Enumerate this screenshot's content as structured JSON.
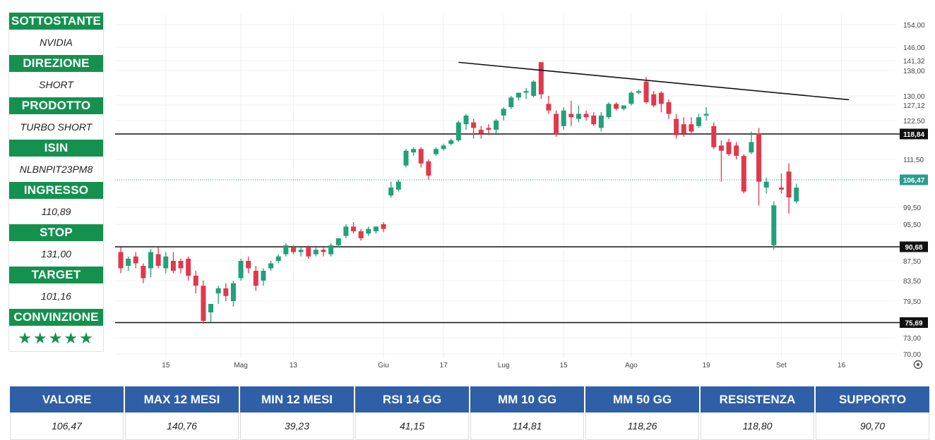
{
  "panel": {
    "items": [
      {
        "label": "SOTTOSTANTE",
        "value": "NVIDIA"
      },
      {
        "label": "DIREZIONE",
        "value": "SHORT"
      },
      {
        "label": "PRODOTTO",
        "value": "TURBO SHORT"
      },
      {
        "label": "ISIN",
        "value": "NLBNPIT23PM8"
      },
      {
        "label": "INGRESSO",
        "value": "110,89"
      },
      {
        "label": "STOP",
        "value": "131,00"
      },
      {
        "label": "TARGET",
        "value": "101,16"
      },
      {
        "label": "CONVINZIONE",
        "value": "★★★★★"
      }
    ],
    "rating_stars": 5
  },
  "chart_data": {
    "type": "candlestick",
    "colors": {
      "up": "#22a07a",
      "down": "#e0384d",
      "line": "#111111",
      "grid": "#f0f0f0",
      "current": "#2a9d8f"
    },
    "grid": true,
    "y_ticks": [
      {
        "value": 154.0,
        "label": "154,00"
      },
      {
        "value": 146.0,
        "label": "146,00"
      },
      {
        "value": 141.32,
        "label": "141,32"
      },
      {
        "value": 138.0,
        "label": "138,00"
      },
      {
        "value": 130.0,
        "label": "130,00"
      },
      {
        "value": 127.12,
        "label": "127,12"
      },
      {
        "value": 122.5,
        "label": "122,50"
      },
      {
        "value": 111.5,
        "label": "111,50"
      },
      {
        "value": 99.5,
        "label": "99,50"
      },
      {
        "value": 95.5,
        "label": "95,50"
      },
      {
        "value": 87.5,
        "label": "87,50"
      },
      {
        "value": 83.5,
        "label": "83,50"
      },
      {
        "value": 79.5,
        "label": "79,50"
      },
      {
        "value": 73.0,
        "label": "73,00"
      },
      {
        "value": 70.0,
        "label": "70,00"
      }
    ],
    "x_ticks": [
      {
        "index": 6,
        "label": "15"
      },
      {
        "index": 16,
        "label": "Mag"
      },
      {
        "index": 23,
        "label": "13"
      },
      {
        "index": 35,
        "label": "Giu"
      },
      {
        "index": 43,
        "label": "17"
      },
      {
        "index": 51,
        "label": "Lug"
      },
      {
        "index": 59,
        "label": "15"
      },
      {
        "index": 68,
        "label": "Ago"
      },
      {
        "index": 78,
        "label": "19"
      },
      {
        "index": 88,
        "label": "Set"
      },
      {
        "index": 96,
        "label": "16"
      }
    ],
    "horizontal_levels": [
      {
        "value": 118.84,
        "label": "118,84"
      },
      {
        "value": 90.68,
        "label": "90,68"
      },
      {
        "value": 75.69,
        "label": "75,69"
      }
    ],
    "current_price": {
      "value": 106.47,
      "label": "106,47"
    },
    "trendline": [
      {
        "index": 45,
        "value": 140.76
      },
      {
        "index": 97,
        "value": 128.8
      }
    ],
    "candles": [
      {
        "o": 89.5,
        "h": 90.6,
        "c": 86.0,
        "l": 85.0
      },
      {
        "o": 86.5,
        "h": 88.5,
        "c": 88.0,
        "l": 85.5
      },
      {
        "o": 88.5,
        "h": 89.5,
        "c": 87.0,
        "l": 86.0
      },
      {
        "o": 86.5,
        "h": 87.0,
        "c": 84.0,
        "l": 83.0
      },
      {
        "o": 86.0,
        "h": 90.2,
        "c": 89.5,
        "l": 84.2
      },
      {
        "o": 89.0,
        "h": 90.5,
        "c": 86.5,
        "l": 86.0
      },
      {
        "o": 86.0,
        "h": 89.5,
        "c": 88.5,
        "l": 85.0
      },
      {
        "o": 87.5,
        "h": 89.5,
        "c": 85.5,
        "l": 85.0
      },
      {
        "o": 87.5,
        "h": 88.0,
        "c": 86.0,
        "l": 85.0
      },
      {
        "o": 88.0,
        "h": 88.5,
        "c": 84.5,
        "l": 83.5
      },
      {
        "o": 84.5,
        "h": 85.5,
        "c": 82.5,
        "l": 81.0
      },
      {
        "o": 82.5,
        "h": 83.5,
        "c": 76.0,
        "l": 75.5
      },
      {
        "o": 77.5,
        "h": 79.0,
        "c": 79.0,
        "l": 75.8
      },
      {
        "o": 81.0,
        "h": 82.5,
        "c": 82.0,
        "l": 79.0
      },
      {
        "o": 82.0,
        "h": 83.0,
        "c": 80.5,
        "l": 79.5
      },
      {
        "o": 79.5,
        "h": 83.5,
        "c": 83.0,
        "l": 78.5
      },
      {
        "o": 84.0,
        "h": 88.0,
        "c": 87.5,
        "l": 83.5
      },
      {
        "o": 87.5,
        "h": 88.5,
        "c": 86.0,
        "l": 85.0
      },
      {
        "o": 85.5,
        "h": 86.5,
        "c": 82.5,
        "l": 81.5
      },
      {
        "o": 83.5,
        "h": 86.0,
        "c": 85.5,
        "l": 82.5
      },
      {
        "o": 86.0,
        "h": 87.5,
        "c": 87.0,
        "l": 85.5
      },
      {
        "o": 87.5,
        "h": 89.0,
        "c": 88.5,
        "l": 87.0
      },
      {
        "o": 89.0,
        "h": 91.5,
        "c": 91.0,
        "l": 88.5
      },
      {
        "o": 90.5,
        "h": 91.0,
        "c": 89.5,
        "l": 89.0
      },
      {
        "o": 89.5,
        "h": 90.5,
        "c": 90.0,
        "l": 88.5
      },
      {
        "o": 90.5,
        "h": 91.0,
        "c": 88.5,
        "l": 88.0
      },
      {
        "o": 89.0,
        "h": 90.5,
        "c": 90.0,
        "l": 88.5
      },
      {
        "o": 90.0,
        "h": 90.5,
        "c": 89.5,
        "l": 88.5
      },
      {
        "o": 89.0,
        "h": 91.5,
        "c": 91.0,
        "l": 88.5
      },
      {
        "o": 91.0,
        "h": 92.0,
        "c": 92.5,
        "l": 90.5
      },
      {
        "o": 93.0,
        "h": 95.5,
        "c": 95.0,
        "l": 92.5
      },
      {
        "o": 95.0,
        "h": 96.0,
        "c": 94.0,
        "l": 93.5
      },
      {
        "o": 94.0,
        "h": 94.5,
        "c": 92.5,
        "l": 92.0
      },
      {
        "o": 93.5,
        "h": 95.0,
        "c": 94.5,
        "l": 93.0
      },
      {
        "o": 94.0,
        "h": 95.0,
        "c": 95.0,
        "l": 93.5
      },
      {
        "o": 95.5,
        "h": 96.0,
        "c": 94.5,
        "l": 93.8
      },
      {
        "o": 102.5,
        "h": 106.0,
        "c": 104.5,
        "l": 102.0
      },
      {
        "o": 104.0,
        "h": 106.5,
        "c": 106.0,
        "l": 103.5
      },
      {
        "o": 110.0,
        "h": 114.5,
        "c": 114.0,
        "l": 109.5
      },
      {
        "o": 113.5,
        "h": 115.0,
        "c": 114.5,
        "l": 112.5
      },
      {
        "o": 114.5,
        "h": 115.0,
        "c": 110.5,
        "l": 109.5
      },
      {
        "o": 111.0,
        "h": 111.5,
        "c": 107.5,
        "l": 106.5
      },
      {
        "o": 113.0,
        "h": 115.0,
        "c": 114.5,
        "l": 112.5
      },
      {
        "o": 114.5,
        "h": 116.0,
        "c": 115.5,
        "l": 114.0
      },
      {
        "o": 116.0,
        "h": 117.5,
        "c": 117.0,
        "l": 115.5
      },
      {
        "o": 117.0,
        "h": 122.5,
        "c": 122.0,
        "l": 116.5
      },
      {
        "o": 121.5,
        "h": 124.5,
        "c": 124.0,
        "l": 120.0
      },
      {
        "o": 122.0,
        "h": 123.0,
        "c": 120.5,
        "l": 117.5
      },
      {
        "o": 120.0,
        "h": 121.0,
        "c": 119.0,
        "l": 117.5
      },
      {
        "o": 120.5,
        "h": 121.5,
        "c": 120.0,
        "l": 118.5
      },
      {
        "o": 120.0,
        "h": 123.0,
        "c": 122.5,
        "l": 119.0
      },
      {
        "o": 124.0,
        "h": 126.5,
        "c": 126.0,
        "l": 122.5
      },
      {
        "o": 126.5,
        "h": 130.0,
        "c": 129.5,
        "l": 126.0
      },
      {
        "o": 129.5,
        "h": 131.0,
        "c": 131.0,
        "l": 128.5
      },
      {
        "o": 131.0,
        "h": 132.5,
        "c": 131.5,
        "l": 129.0
      },
      {
        "o": 130.0,
        "h": 135.0,
        "c": 134.5,
        "l": 129.5
      },
      {
        "o": 140.8,
        "h": 140.8,
        "c": 130.5,
        "l": 129.0
      },
      {
        "o": 127.5,
        "h": 130.0,
        "c": 125.5,
        "l": 124.5
      },
      {
        "o": 124.5,
        "h": 125.5,
        "c": 118.8,
        "l": 118.0
      },
      {
        "o": 121.0,
        "h": 126.5,
        "c": 125.5,
        "l": 120.0
      },
      {
        "o": 124.5,
        "h": 128.5,
        "c": 123.5,
        "l": 121.0
      },
      {
        "o": 123.0,
        "h": 127.0,
        "c": 124.5,
        "l": 122.0
      },
      {
        "o": 124.5,
        "h": 125.5,
        "c": 123.5,
        "l": 122.5
      },
      {
        "o": 124.0,
        "h": 125.0,
        "c": 121.5,
        "l": 121.0
      },
      {
        "o": 120.5,
        "h": 125.0,
        "c": 124.0,
        "l": 119.5
      },
      {
        "o": 123.5,
        "h": 128.0,
        "c": 127.5,
        "l": 123.0
      },
      {
        "o": 127.5,
        "h": 128.0,
        "c": 126.0,
        "l": 125.5
      },
      {
        "o": 126.0,
        "h": 127.0,
        "c": 127.0,
        "l": 125.5
      },
      {
        "o": 127.5,
        "h": 131.5,
        "c": 131.0,
        "l": 127.0
      },
      {
        "o": 131.0,
        "h": 132.0,
        "c": 131.5,
        "l": 130.5
      },
      {
        "o": 134.5,
        "h": 136.0,
        "c": 128.0,
        "l": 127.5
      },
      {
        "o": 130.5,
        "h": 131.5,
        "c": 127.0,
        "l": 126.5
      },
      {
        "o": 131.0,
        "h": 131.5,
        "c": 127.5,
        "l": 125.0
      },
      {
        "o": 128.0,
        "h": 129.0,
        "c": 124.5,
        "l": 123.0
      },
      {
        "o": 123.0,
        "h": 124.5,
        "c": 118.5,
        "l": 117.5
      },
      {
        "o": 121.5,
        "h": 123.5,
        "c": 119.0,
        "l": 118.0
      },
      {
        "o": 121.5,
        "h": 123.5,
        "c": 119.5,
        "l": 118.5
      },
      {
        "o": 121.0,
        "h": 124.5,
        "c": 123.5,
        "l": 120.5
      },
      {
        "o": 124.0,
        "h": 126.5,
        "c": 124.5,
        "l": 122.5
      },
      {
        "o": 121.0,
        "h": 122.0,
        "c": 115.0,
        "l": 114.5
      },
      {
        "o": 115.5,
        "h": 117.0,
        "c": 114.0,
        "l": 106.0
      },
      {
        "o": 116.5,
        "h": 117.5,
        "c": 113.0,
        "l": 112.5
      },
      {
        "o": 115.5,
        "h": 116.5,
        "c": 112.5,
        "l": 111.5
      },
      {
        "o": 112.5,
        "h": 113.0,
        "c": 103.5,
        "l": 103.0
      },
      {
        "o": 113.5,
        "h": 119.5,
        "c": 116.5,
        "l": 113.0
      },
      {
        "o": 119.0,
        "h": 120.5,
        "c": 106.0,
        "l": 100.0
      },
      {
        "o": 104.5,
        "h": 107.0,
        "c": 106.0,
        "l": 103.0
      },
      {
        "o": 91.0,
        "h": 101.0,
        "c": 100.0,
        "l": 90.0
      },
      {
        "o": 104.5,
        "h": 108.0,
        "c": 104.0,
        "l": 103.0
      },
      {
        "o": 108.5,
        "h": 110.5,
        "c": 102.0,
        "l": 98.0
      },
      {
        "o": 101.0,
        "h": 105.5,
        "c": 104.5,
        "l": 100.5
      }
    ]
  },
  "stats": {
    "headers": [
      "VALORE",
      "MAX 12 MESI",
      "MIN 12 MESI",
      "RSI 14 GG",
      "MM 10 GG",
      "MM 50 GG",
      "RESISTENZA",
      "SUPPORTO"
    ],
    "values": [
      "106,47",
      "140,76",
      "39,23",
      "41,15",
      "114,81",
      "118,26",
      "118,80",
      "90,70"
    ]
  }
}
